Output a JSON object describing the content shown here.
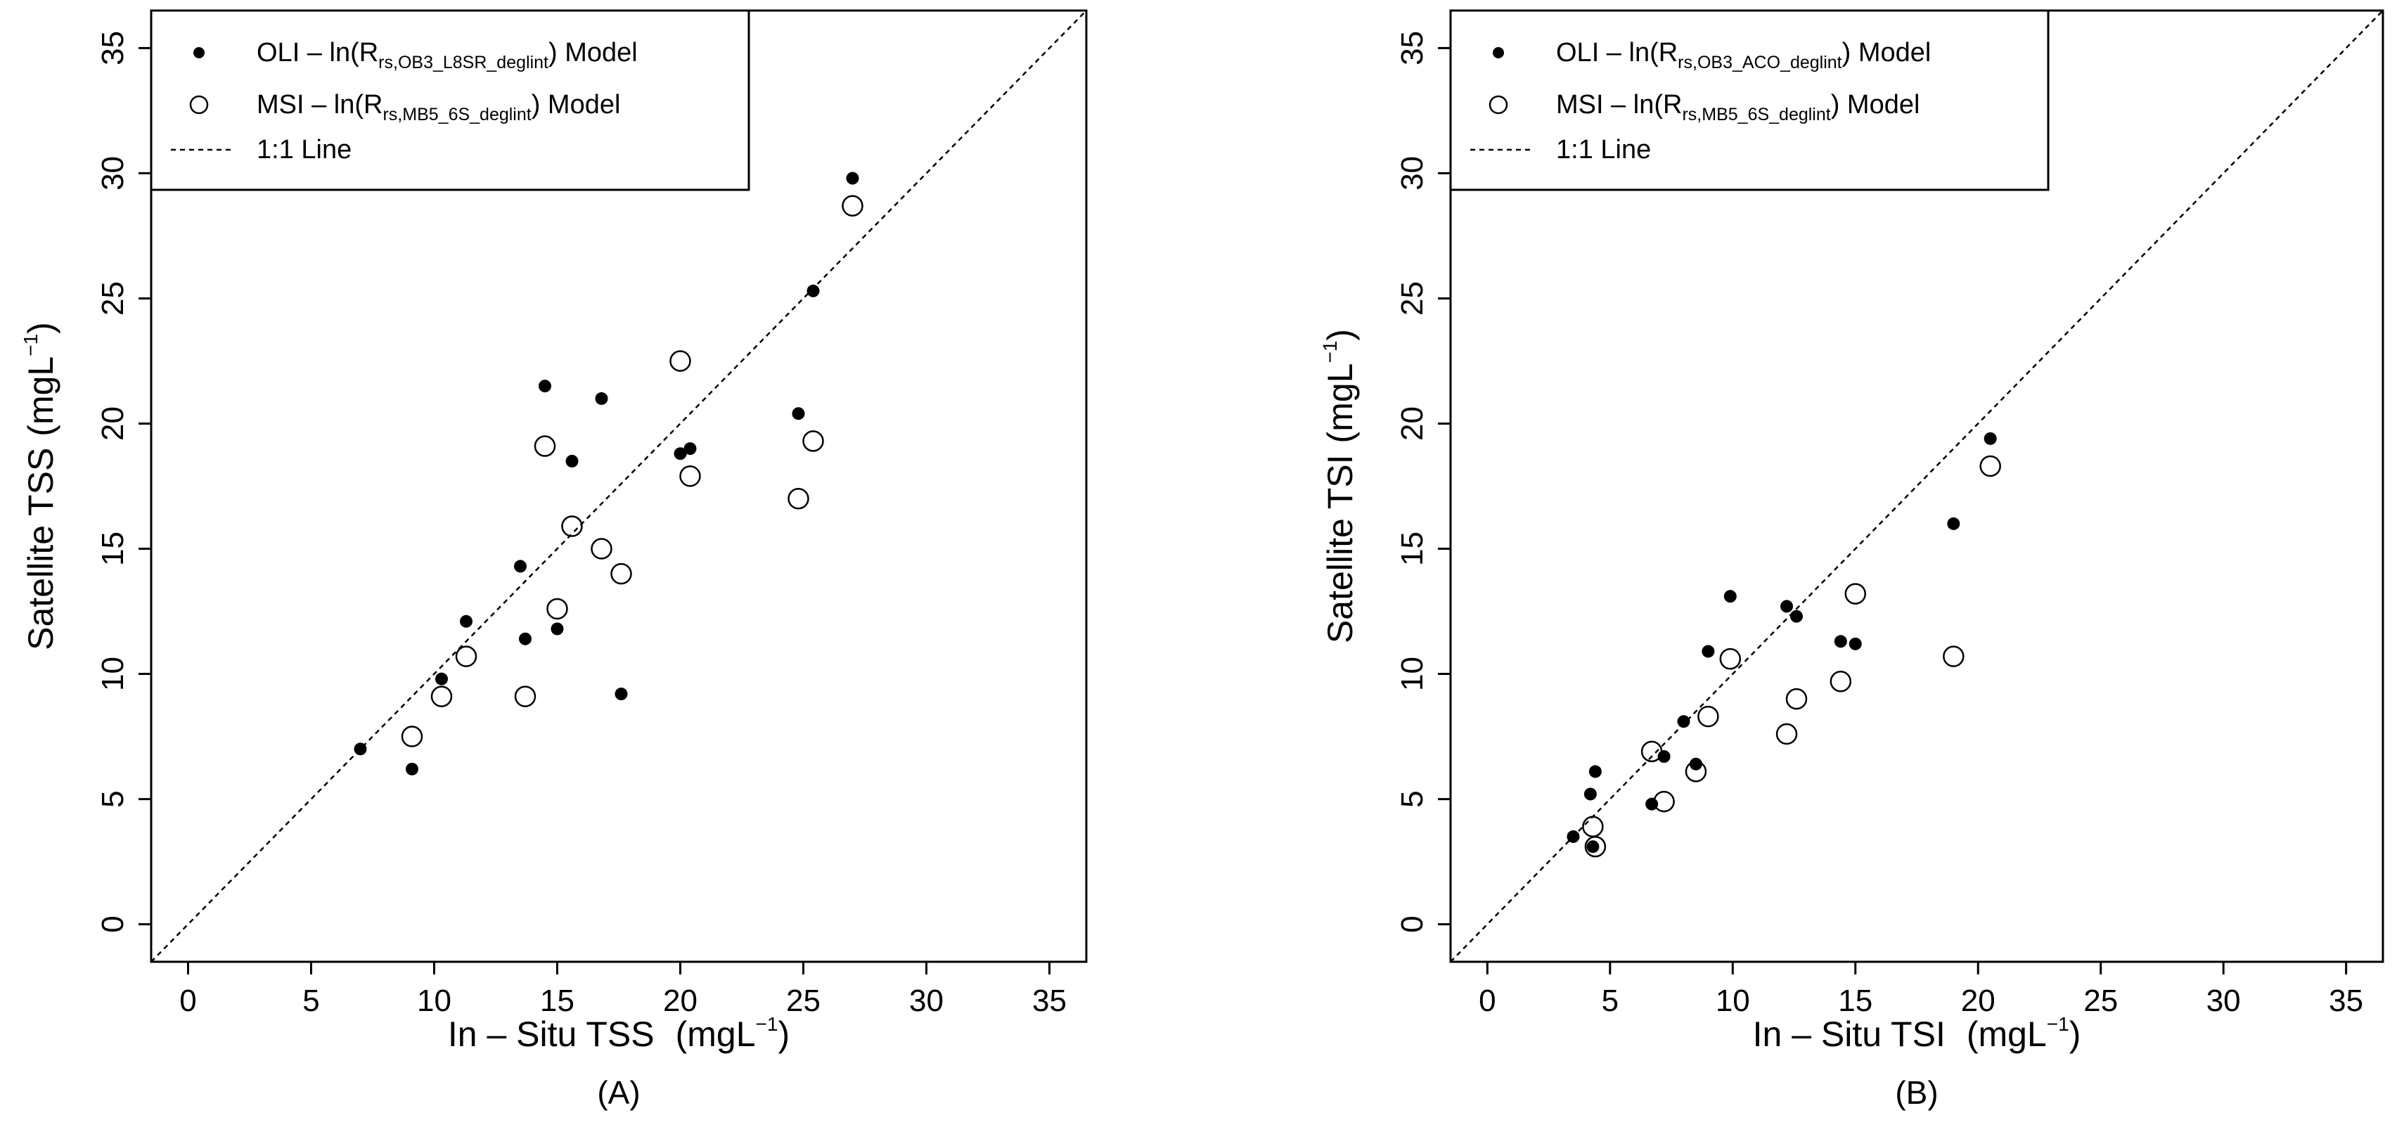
{
  "chart_data": [
    {
      "type": "scatter",
      "panel_label": "(A)",
      "xlabel": "In – Situ TSS",
      "ylabel": "Satellite TSS",
      "unit": "mgL",
      "unit_exponent": "−1",
      "xlim": [
        -1.5,
        36.5
      ],
      "ylim": [
        -1.5,
        36.5
      ],
      "ticks": [
        "0",
        "5",
        "10",
        "15",
        "20",
        "25",
        "30",
        "35"
      ],
      "tick_values": [
        0,
        5,
        10,
        15,
        20,
        25,
        30,
        35
      ],
      "legend_position": "top-left",
      "one_to_one_line": true,
      "series": [
        {
          "name": "OLI – ln(R",
          "sub": "rs,OB3_L8SR_deglint",
          "suffix": ") Model",
          "marker": "filled",
          "points": [
            [
              7.0,
              7.0
            ],
            [
              9.1,
              6.2
            ],
            [
              10.3,
              9.8
            ],
            [
              11.3,
              12.1
            ],
            [
              13.5,
              14.3
            ],
            [
              13.7,
              11.4
            ],
            [
              14.5,
              21.5
            ],
            [
              15.0,
              11.8
            ],
            [
              15.6,
              18.5
            ],
            [
              16.8,
              21.0
            ],
            [
              17.6,
              9.2
            ],
            [
              20.0,
              18.8
            ],
            [
              20.4,
              19.0
            ],
            [
              24.8,
              20.4
            ],
            [
              25.4,
              25.3
            ],
            [
              27.0,
              29.8
            ]
          ]
        },
        {
          "name": "MSI – ln(R",
          "sub": "rs,MB5_6S_deglint",
          "suffix": ") Model",
          "marker": "open",
          "points": [
            [
              9.1,
              7.5
            ],
            [
              10.3,
              9.1
            ],
            [
              11.3,
              10.7
            ],
            [
              13.7,
              9.1
            ],
            [
              14.5,
              19.1
            ],
            [
              15.0,
              12.6
            ],
            [
              15.6,
              15.9
            ],
            [
              16.8,
              15.0
            ],
            [
              17.6,
              14.0
            ],
            [
              20.0,
              22.5
            ],
            [
              20.4,
              17.9
            ],
            [
              24.8,
              17.0
            ],
            [
              25.4,
              19.3
            ],
            [
              27.0,
              28.7
            ]
          ]
        }
      ],
      "line_label": "1:1 Line"
    },
    {
      "type": "scatter",
      "panel_label": "(B)",
      "xlabel": "In – Situ TSI",
      "ylabel": "Satellite TSI",
      "unit": "mgL",
      "unit_exponent": "−1",
      "xlim": [
        -1.5,
        36.5
      ],
      "ylim": [
        -1.5,
        36.5
      ],
      "ticks": [
        "0",
        "5",
        "10",
        "15",
        "20",
        "25",
        "30",
        "35"
      ],
      "tick_values": [
        0,
        5,
        10,
        15,
        20,
        25,
        30,
        35
      ],
      "legend_position": "top-left",
      "one_to_one_line": true,
      "series": [
        {
          "name": "OLI – ln(R",
          "sub": "rs,OB3_ACO_deglint",
          "suffix": ") Model",
          "marker": "filled",
          "points": [
            [
              3.5,
              3.5
            ],
            [
              4.2,
              5.2
            ],
            [
              4.3,
              3.1
            ],
            [
              4.4,
              6.1
            ],
            [
              6.7,
              4.8
            ],
            [
              7.2,
              6.7
            ],
            [
              8.0,
              8.1
            ],
            [
              8.5,
              6.4
            ],
            [
              9.0,
              10.9
            ],
            [
              9.9,
              13.1
            ],
            [
              12.2,
              12.7
            ],
            [
              12.6,
              12.3
            ],
            [
              14.4,
              11.3
            ],
            [
              15.0,
              11.2
            ],
            [
              19.0,
              16.0
            ],
            [
              20.5,
              19.4
            ]
          ]
        },
        {
          "name": "MSI – ln(R",
          "sub": "rs,MB5_6S_deglint",
          "suffix": ") Model",
          "marker": "open",
          "points": [
            [
              4.3,
              3.9
            ],
            [
              4.4,
              3.1
            ],
            [
              6.7,
              6.9
            ],
            [
              7.2,
              4.9
            ],
            [
              8.5,
              6.1
            ],
            [
              9.0,
              8.3
            ],
            [
              9.9,
              10.6
            ],
            [
              12.2,
              7.6
            ],
            [
              12.6,
              9.0
            ],
            [
              14.4,
              9.7
            ],
            [
              15.0,
              13.2
            ],
            [
              19.0,
              10.7
            ],
            [
              20.5,
              18.3
            ]
          ]
        }
      ],
      "line_label": "1:1 Line"
    }
  ]
}
